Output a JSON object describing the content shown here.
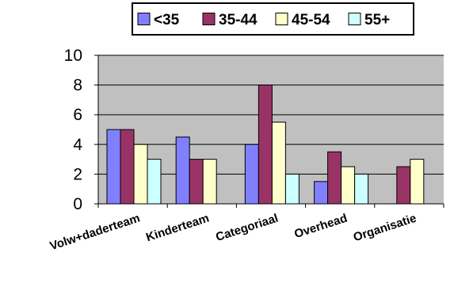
{
  "chart_data": {
    "type": "bar",
    "title": "",
    "xlabel": "",
    "ylabel": "",
    "categories": [
      "Volw+daderteam",
      "Kinderteam",
      "Categoriaal",
      "Overhead",
      "Organisatie"
    ],
    "series": [
      {
        "name": "<35",
        "color": "#8080ff",
        "values": [
          5,
          4.5,
          4,
          1.5,
          null
        ]
      },
      {
        "name": "35-44",
        "color": "#993366",
        "values": [
          5,
          3,
          8,
          3.5,
          2.5
        ]
      },
      {
        "name": "45-54",
        "color": "#ffffcc",
        "values": [
          4,
          3,
          5.5,
          2.5,
          3
        ]
      },
      {
        "name": "55+",
        "color": "#ccffff",
        "values": [
          3,
          null,
          2,
          2,
          null
        ]
      }
    ],
    "ylim": [
      0,
      10
    ],
    "yticks": [
      0,
      2,
      4,
      6,
      8,
      10
    ],
    "grid": true,
    "legend_position": "top",
    "plot_background": "#c0c0c0"
  }
}
